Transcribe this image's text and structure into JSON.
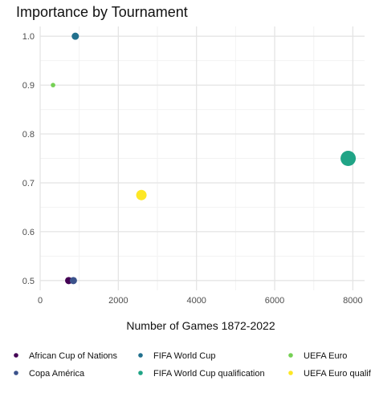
{
  "chart_data": {
    "type": "scatter",
    "title": "Importance by Tournament",
    "xlabel": "Number of Games 1872-2022",
    "ylabel": "",
    "xlim": [
      0,
      8300
    ],
    "ylim": [
      0.48,
      1.02
    ],
    "x_ticks": [
      0,
      2000,
      4000,
      6000,
      8000
    ],
    "y_ticks": [
      0.5,
      0.6,
      0.7,
      0.8,
      0.9,
      1.0
    ],
    "y_tick_labels": [
      "0.5",
      "0.6",
      "0.7",
      "0.8",
      "0.9",
      "1.0"
    ],
    "x_tick_labels": [
      "0",
      "2000",
      "4000",
      "6000",
      "8000"
    ],
    "grid": true,
    "legend_position": "bottom",
    "series": [
      {
        "name": "African Cup of Nations",
        "color": "#440154",
        "x": 730,
        "y": 0.5,
        "size": 4.5
      },
      {
        "name": "Copa América",
        "color": "#3b528b",
        "x": 850,
        "y": 0.5,
        "size": 4.5
      },
      {
        "name": "FIFA World Cup",
        "color": "#21708d",
        "x": 900,
        "y": 1.0,
        "size": 4.5
      },
      {
        "name": "FIFA World Cup qualification",
        "color": "#20a486",
        "x": 7880,
        "y": 0.75,
        "size": 9.5
      },
      {
        "name": "UEFA Euro",
        "color": "#75d054",
        "x": 330,
        "y": 0.9,
        "size": 2.8
      },
      {
        "name": "UEFA Euro qualification",
        "color": "#fde725",
        "x": 2590,
        "y": 0.675,
        "size": 6.5
      }
    ]
  }
}
